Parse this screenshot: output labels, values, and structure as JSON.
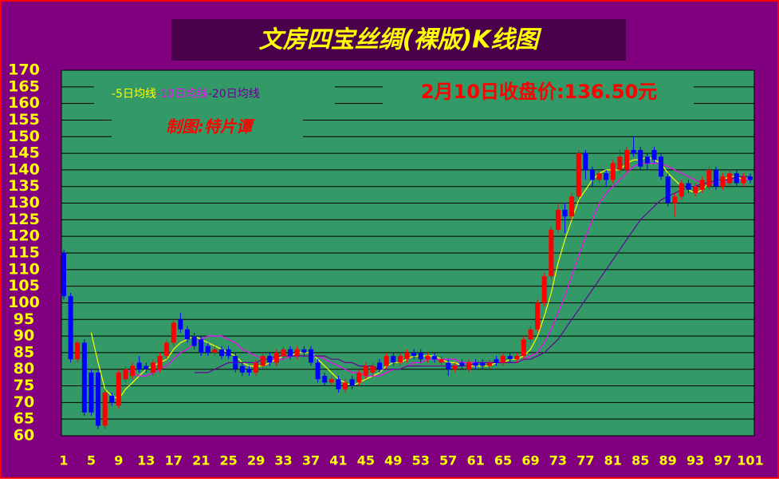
{
  "chart_data": {
    "type": "candlestick",
    "title": "文房四宝丝绸(裸版)K线图",
    "annotation": "2月10日收盘价:136.50元",
    "credit": "制图:特片谭",
    "categories": [
      "1",
      null,
      null,
      null,
      "5",
      null,
      null,
      null,
      "9",
      null,
      null,
      null,
      "13",
      null,
      null,
      null,
      "17",
      null,
      null,
      null,
      "21",
      null,
      null,
      null,
      "25",
      null,
      null,
      null,
      "29",
      null,
      null,
      null,
      "33",
      null,
      null,
      null,
      "37",
      null,
      null,
      null,
      "41",
      null,
      null,
      null,
      "45",
      null,
      null,
      null,
      "49",
      null,
      null,
      null,
      "53",
      null,
      null,
      null,
      "57",
      null,
      null,
      null,
      "61",
      null,
      null,
      null,
      "65",
      null,
      null,
      null,
      "69",
      null,
      null,
      null,
      "73",
      null,
      null,
      null,
      "77",
      null,
      null,
      null,
      "81",
      null,
      null,
      null,
      "85",
      null,
      null,
      null,
      "89",
      null,
      null,
      null,
      "93",
      null,
      null,
      null,
      "97",
      null,
      null,
      null,
      "101"
    ],
    "open": [
      115,
      102,
      83,
      88,
      79,
      79,
      63,
      72,
      69,
      77,
      78,
      82,
      81,
      79,
      80,
      84,
      88,
      95,
      92,
      90,
      89,
      87,
      85,
      86,
      86,
      84,
      81,
      80,
      79,
      81,
      84,
      82,
      84,
      86,
      84,
      86,
      86,
      82,
      78,
      76,
      77,
      74,
      77,
      76,
      78,
      79,
      82,
      81,
      84,
      82,
      83,
      85,
      85,
      83,
      84,
      82,
      82,
      80,
      82,
      80,
      82,
      82,
      81,
      83,
      82,
      84,
      83,
      84,
      89,
      92,
      100,
      108,
      122,
      128,
      126,
      132,
      145,
      140,
      137,
      139,
      137,
      140,
      140,
      146,
      146,
      144,
      146,
      144,
      138,
      130,
      132,
      136,
      133,
      134,
      135,
      140,
      135,
      136,
      139,
      136,
      138
    ],
    "close": [
      102,
      83,
      88,
      67,
      67,
      63,
      73,
      70,
      79,
      80,
      81,
      80,
      80,
      82,
      84,
      88,
      94,
      92,
      89,
      87,
      85,
      85,
      86,
      84,
      84,
      80,
      79,
      79,
      82,
      84,
      82,
      85,
      86,
      84,
      86,
      85,
      82,
      77,
      76,
      77,
      74,
      76,
      75,
      79,
      81,
      81,
      80,
      84,
      82,
      84,
      85,
      84,
      83,
      84,
      83,
      83,
      80,
      81,
      81,
      82,
      81,
      81,
      82,
      82,
      84,
      83,
      84,
      89,
      92,
      100,
      108,
      122,
      128,
      126,
      132,
      145,
      140,
      137,
      139,
      137,
      142,
      144,
      146,
      145,
      141,
      142,
      143,
      138,
      130,
      132,
      136,
      134,
      135,
      137,
      140,
      135,
      138,
      139,
      136,
      138,
      137
    ],
    "high": [
      116,
      103,
      89,
      89,
      80,
      80,
      74,
      73,
      80,
      81,
      82,
      84,
      82,
      83,
      85,
      89,
      95,
      97,
      93,
      91,
      90,
      88,
      87,
      87,
      87,
      85,
      82,
      81,
      83,
      85,
      85,
      86,
      87,
      87,
      87,
      87,
      87,
      83,
      79,
      78,
      78,
      77,
      78,
      80,
      82,
      82,
      83,
      85,
      85,
      85,
      86,
      86,
      86,
      85,
      85,
      84,
      83,
      82,
      83,
      83,
      83,
      83,
      83,
      84,
      85,
      85,
      85,
      90,
      93,
      101,
      109,
      123,
      130,
      130,
      133,
      146,
      146,
      141,
      140,
      140,
      143,
      146,
      147,
      150,
      147,
      145,
      147,
      145,
      139,
      133,
      137,
      137,
      136,
      138,
      141,
      141,
      139,
      140,
      140,
      139,
      139
    ],
    "low": [
      101,
      82,
      82,
      66,
      66,
      62,
      62,
      69,
      68,
      76,
      77,
      79,
      79,
      78,
      79,
      83,
      87,
      91,
      88,
      86,
      84,
      84,
      84,
      83,
      83,
      79,
      78,
      78,
      78,
      80,
      81,
      81,
      83,
      83,
      83,
      84,
      81,
      76,
      75,
      75,
      73,
      73,
      74,
      75,
      77,
      78,
      79,
      80,
      81,
      81,
      82,
      83,
      82,
      82,
      82,
      81,
      78,
      79,
      80,
      79,
      80,
      80,
      80,
      81,
      81,
      82,
      82,
      83,
      88,
      91,
      99,
      107,
      121,
      121,
      125,
      131,
      137,
      135,
      136,
      135,
      136,
      139,
      139,
      144,
      140,
      140,
      142,
      137,
      129,
      126,
      131,
      133,
      132,
      133,
      134,
      134,
      134,
      135,
      135,
      135,
      136
    ],
    "up_color": "#ff0000",
    "down_color": "#0000ff",
    "series": [
      {
        "name": "-5日均线",
        "color": "#ffff00",
        "values": [
          null,
          null,
          null,
          null,
          91,
          82,
          74,
          72,
          71,
          74,
          76,
          78,
          80,
          81,
          82,
          83,
          86,
          88,
          89,
          90,
          89,
          88,
          87,
          86,
          85,
          84,
          82,
          81,
          81,
          81,
          82,
          83,
          84,
          84,
          85,
          85,
          85,
          83,
          81,
          79,
          77,
          76,
          75,
          76,
          77,
          78,
          79,
          81,
          82,
          82,
          83,
          84,
          84,
          84,
          84,
          83,
          82,
          82,
          81,
          81,
          81,
          81,
          81,
          82,
          82,
          83,
          83,
          84,
          86,
          90,
          96,
          103,
          112,
          119,
          125,
          131,
          134,
          137,
          139,
          140,
          140,
          140,
          142,
          143,
          143,
          144,
          143,
          142,
          139,
          137,
          135,
          134,
          133,
          134,
          136,
          137,
          137,
          138,
          138,
          137,
          137
        ]
      },
      {
        "name": "-10日均线",
        "color": "#ff00ff",
        "values": [
          null,
          null,
          null,
          null,
          null,
          null,
          null,
          null,
          null,
          80,
          79,
          78,
          78,
          79,
          80,
          81,
          83,
          85,
          86,
          88,
          89,
          90,
          90,
          90,
          89,
          88,
          86,
          85,
          84,
          83,
          83,
          83,
          83,
          84,
          84,
          84,
          84,
          84,
          83,
          82,
          81,
          80,
          79,
          79,
          78,
          78,
          78,
          79,
          80,
          80,
          81,
          82,
          82,
          83,
          83,
          83,
          83,
          83,
          82,
          82,
          82,
          82,
          82,
          82,
          82,
          82,
          82,
          83,
          84,
          85,
          88,
          92,
          97,
          102,
          108,
          114,
          120,
          125,
          130,
          133,
          135,
          137,
          139,
          141,
          142,
          142,
          142,
          142,
          141,
          140,
          139,
          138,
          137,
          136,
          136,
          136,
          136,
          137,
          137,
          137,
          137
        ]
      },
      {
        "name": "-20日均线",
        "color": "#660099",
        "values": [
          null,
          null,
          null,
          null,
          null,
          null,
          null,
          null,
          null,
          null,
          null,
          null,
          null,
          null,
          null,
          null,
          null,
          null,
          null,
          79,
          79,
          79,
          80,
          81,
          82,
          82,
          82,
          82,
          82,
          83,
          83,
          84,
          84,
          84,
          84,
          84,
          84,
          84,
          84,
          83,
          83,
          82,
          82,
          81,
          81,
          81,
          80,
          80,
          80,
          80,
          81,
          81,
          81,
          81,
          81,
          81,
          81,
          81,
          81,
          81,
          82,
          82,
          82,
          82,
          82,
          82,
          82,
          83,
          83,
          84,
          85,
          87,
          89,
          92,
          95,
          98,
          101,
          104,
          107,
          110,
          113,
          116,
          119,
          122,
          125,
          127,
          129,
          131,
          132,
          133,
          134,
          135,
          135,
          136,
          136,
          137,
          137,
          137,
          138,
          138,
          138
        ]
      }
    ],
    "ylim": [
      60,
      170
    ],
    "yticks": [
      60,
      65,
      70,
      75,
      80,
      85,
      90,
      95,
      100,
      105,
      110,
      115,
      120,
      125,
      130,
      135,
      140,
      145,
      150,
      155,
      160,
      165,
      170
    ],
    "grid": true
  }
}
